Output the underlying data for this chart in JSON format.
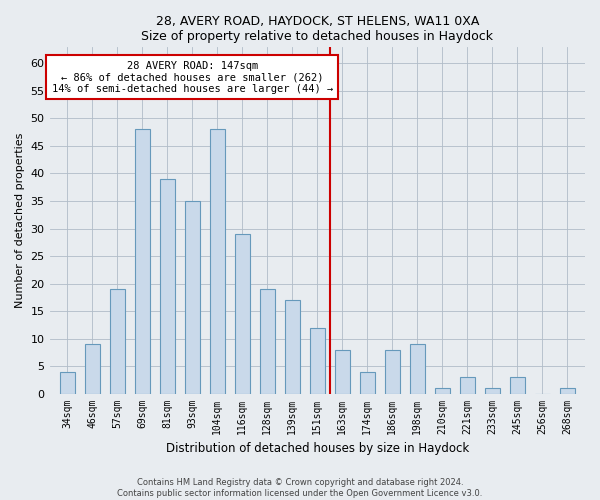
{
  "title": "28, AVERY ROAD, HAYDOCK, ST HELENS, WA11 0XA",
  "subtitle": "Size of property relative to detached houses in Haydock",
  "xlabel": "Distribution of detached houses by size in Haydock",
  "ylabel": "Number of detached properties",
  "categories": [
    "34sqm",
    "46sqm",
    "57sqm",
    "69sqm",
    "81sqm",
    "93sqm",
    "104sqm",
    "116sqm",
    "128sqm",
    "139sqm",
    "151sqm",
    "163sqm",
    "174sqm",
    "186sqm",
    "198sqm",
    "210sqm",
    "221sqm",
    "233sqm",
    "245sqm",
    "256sqm",
    "268sqm"
  ],
  "values": [
    4,
    9,
    19,
    48,
    39,
    35,
    48,
    29,
    19,
    17,
    12,
    8,
    4,
    8,
    9,
    1,
    3,
    1,
    3,
    0,
    1
  ],
  "bar_color": "#c9d9ea",
  "bar_edge_color": "#6699bb",
  "annotation_text": "28 AVERY ROAD: 147sqm\n← 86% of detached houses are smaller (262)\n14% of semi-detached houses are larger (44) →",
  "vline_color": "#cc0000",
  "annotation_box_edge_color": "#cc0000",
  "ylim": [
    0,
    63
  ],
  "yticks": [
    0,
    5,
    10,
    15,
    20,
    25,
    30,
    35,
    40,
    45,
    50,
    55,
    60
  ],
  "bg_color": "#e8ecf0",
  "grid_color": "#d8dde3",
  "footer_text": "Contains HM Land Registry data © Crown copyright and database right 2024.\nContains public sector information licensed under the Open Government Licence v3.0."
}
